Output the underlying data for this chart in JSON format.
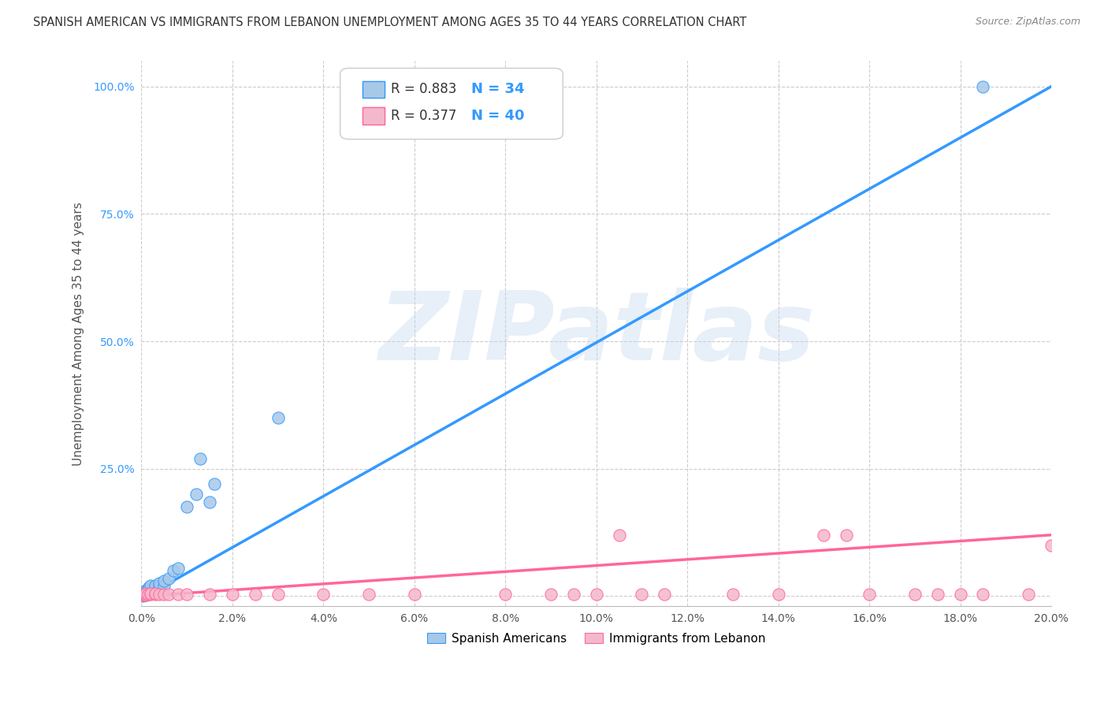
{
  "title": "SPANISH AMERICAN VS IMMIGRANTS FROM LEBANON UNEMPLOYMENT AMONG AGES 35 TO 44 YEARS CORRELATION CHART",
  "source": "Source: ZipAtlas.com",
  "ylabel": "Unemployment Among Ages 35 to 44 years",
  "xlim": [
    0.0,
    0.2
  ],
  "ylim": [
    -0.02,
    1.05
  ],
  "xticks": [
    0.0,
    0.02,
    0.04,
    0.06,
    0.08,
    0.1,
    0.12,
    0.14,
    0.16,
    0.18,
    0.2
  ],
  "xtick_labels": [
    "0.0%",
    "2.0%",
    "4.0%",
    "6.0%",
    "8.0%",
    "10.0%",
    "12.0%",
    "14.0%",
    "16.0%",
    "18.0%",
    "20.0%"
  ],
  "yticks": [
    0.0,
    0.25,
    0.5,
    0.75,
    1.0
  ],
  "ytick_labels": [
    "",
    "25.0%",
    "50.0%",
    "75.0%",
    "100.0%"
  ],
  "blue_R": 0.883,
  "blue_N": 34,
  "pink_R": 0.377,
  "pink_N": 40,
  "blue_color": "#a8c8e8",
  "pink_color": "#f4b8cc",
  "blue_line_color": "#3399ff",
  "pink_line_color": "#ff6699",
  "r_text_color": "#333333",
  "n_text_color": "#3399ff",
  "legend_label_blue": "Spanish Americans",
  "legend_label_pink": "Immigrants from Lebanon",
  "watermark": "ZIPatlas",
  "title_fontsize": 10.5,
  "axis_label_fontsize": 11,
  "tick_fontsize": 10,
  "blue_scatter_x": [
    0.0003,
    0.0005,
    0.0006,
    0.0007,
    0.0008,
    0.0009,
    0.001,
    0.001,
    0.001,
    0.0012,
    0.0013,
    0.0014,
    0.0015,
    0.0016,
    0.0017,
    0.002,
    0.002,
    0.002,
    0.003,
    0.003,
    0.004,
    0.004,
    0.005,
    0.005,
    0.006,
    0.007,
    0.008,
    0.01,
    0.012,
    0.013,
    0.015,
    0.016,
    0.03,
    0.185
  ],
  "blue_scatter_y": [
    0.0,
    0.005,
    0.002,
    0.003,
    0.005,
    0.002,
    0.003,
    0.007,
    0.012,
    0.005,
    0.01,
    0.008,
    0.015,
    0.012,
    0.018,
    0.005,
    0.01,
    0.02,
    0.015,
    0.02,
    0.018,
    0.025,
    0.02,
    0.03,
    0.035,
    0.05,
    0.055,
    0.175,
    0.2,
    0.27,
    0.185,
    0.22,
    0.35,
    1.0
  ],
  "pink_scatter_x": [
    0.0003,
    0.0005,
    0.0007,
    0.001,
    0.001,
    0.0015,
    0.002,
    0.002,
    0.003,
    0.003,
    0.004,
    0.005,
    0.006,
    0.008,
    0.01,
    0.015,
    0.02,
    0.025,
    0.03,
    0.04,
    0.05,
    0.06,
    0.08,
    0.09,
    0.095,
    0.1,
    0.105,
    0.11,
    0.115,
    0.13,
    0.14,
    0.15,
    0.155,
    0.16,
    0.17,
    0.175,
    0.18,
    0.185,
    0.195,
    0.2
  ],
  "pink_scatter_y": [
    0.002,
    0.003,
    0.003,
    0.002,
    0.005,
    0.003,
    0.003,
    0.005,
    0.004,
    0.005,
    0.004,
    0.003,
    0.004,
    0.003,
    0.003,
    0.004,
    0.004,
    0.003,
    0.003,
    0.004,
    0.003,
    0.003,
    0.004,
    0.003,
    0.003,
    0.003,
    0.12,
    0.003,
    0.003,
    0.003,
    0.003,
    0.12,
    0.12,
    0.003,
    0.003,
    0.003,
    0.003,
    0.003,
    0.003,
    0.1
  ],
  "blue_line_x": [
    0.0,
    0.2
  ],
  "blue_line_y": [
    -0.005,
    1.0
  ],
  "pink_line_x": [
    0.0,
    0.2
  ],
  "pink_line_y": [
    0.0,
    0.12
  ]
}
